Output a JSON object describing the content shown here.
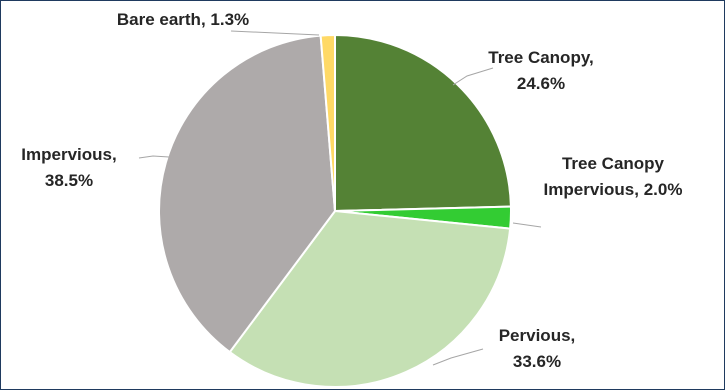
{
  "chart_data": {
    "type": "pie",
    "title": "",
    "slices": [
      {
        "name": "Tree Canopy",
        "value": 24.6,
        "color": "#548235",
        "label_lines": [
          "Tree Canopy,",
          "24.6%"
        ]
      },
      {
        "name": "Tree Canopy Impervious",
        "value": 2.0,
        "color": "#33cc33",
        "label_lines": [
          "Tree Canopy",
          "Impervious, 2.0%"
        ]
      },
      {
        "name": "Pervious",
        "value": 33.6,
        "color": "#c5e0b4",
        "label_lines": [
          "Pervious,",
          "33.6%"
        ]
      },
      {
        "name": "Impervious",
        "value": 38.5,
        "color": "#aeaaaa",
        "label_lines": [
          "Impervious,",
          "38.5%"
        ]
      },
      {
        "name": "Bare earth",
        "value": 1.3,
        "color": "#ffd966",
        "label_lines": [
          "Bare earth, 1.3%"
        ]
      }
    ],
    "legend": "none",
    "data_labels": "outside with leader lines"
  }
}
